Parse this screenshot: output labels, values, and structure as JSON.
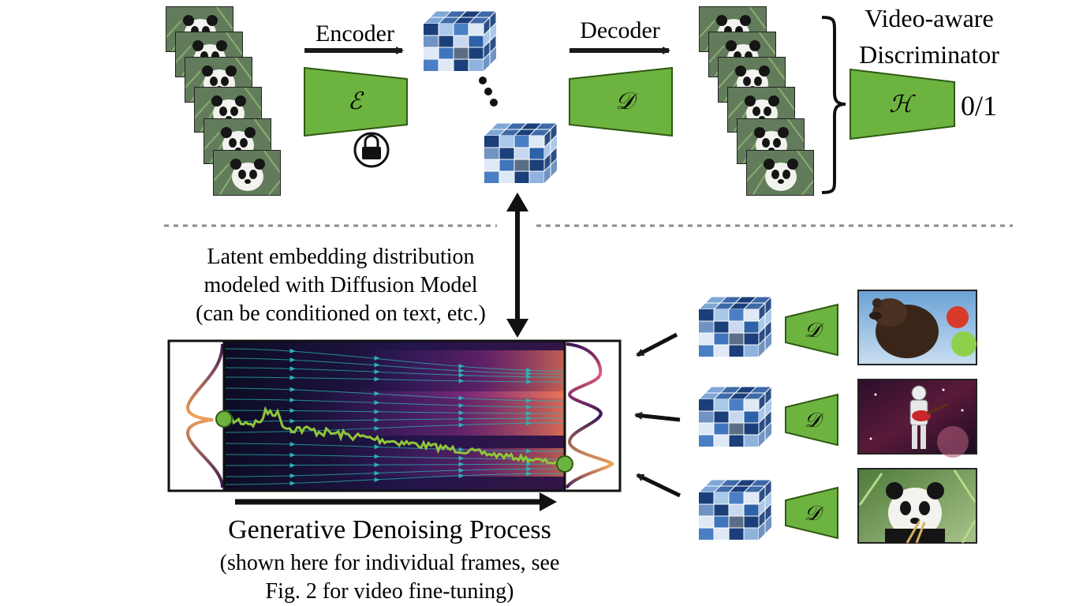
{
  "top": {
    "encoder_label": "Encoder",
    "decoder_label": "Decoder",
    "encoder_symbol": "ℰ",
    "decoder_symbol": "𝒟",
    "discriminator_title_line1": "Video-aware",
    "discriminator_title_line2": "Discriminator",
    "discriminator_symbol": "ℋ",
    "discriminator_output": "0/1",
    "encoder_frozen_icon": "lock-icon"
  },
  "middle": {
    "latent_caption_line1": "Latent embedding distribution",
    "latent_caption_line2": "modeled with Diffusion Model",
    "latent_caption_line3": "(can be conditioned on text, etc.)"
  },
  "bottom": {
    "process_title": "Generative Denoising Process",
    "process_note_line1": "(shown here for individual frames, see",
    "process_note_line2": "Fig. 2 for video fine-tuning)",
    "decoder_symbol": "𝒟",
    "samples": [
      "bear-with-balloons-image",
      "astronaut-with-guitar-image",
      "panda-eating-bamboo-image"
    ]
  },
  "colors": {
    "green": "#6db33f",
    "green_dark": "#2f5a12",
    "cube_blue_dark": "#1b3f7a",
    "cube_blue": "#4a7fc4",
    "cube_light": "#aac8ea",
    "flow_bg": "#14102a",
    "flow_magenta": "#c23a8a",
    "trajectory": "#8fc63a",
    "stream": "#2bb3b8"
  }
}
